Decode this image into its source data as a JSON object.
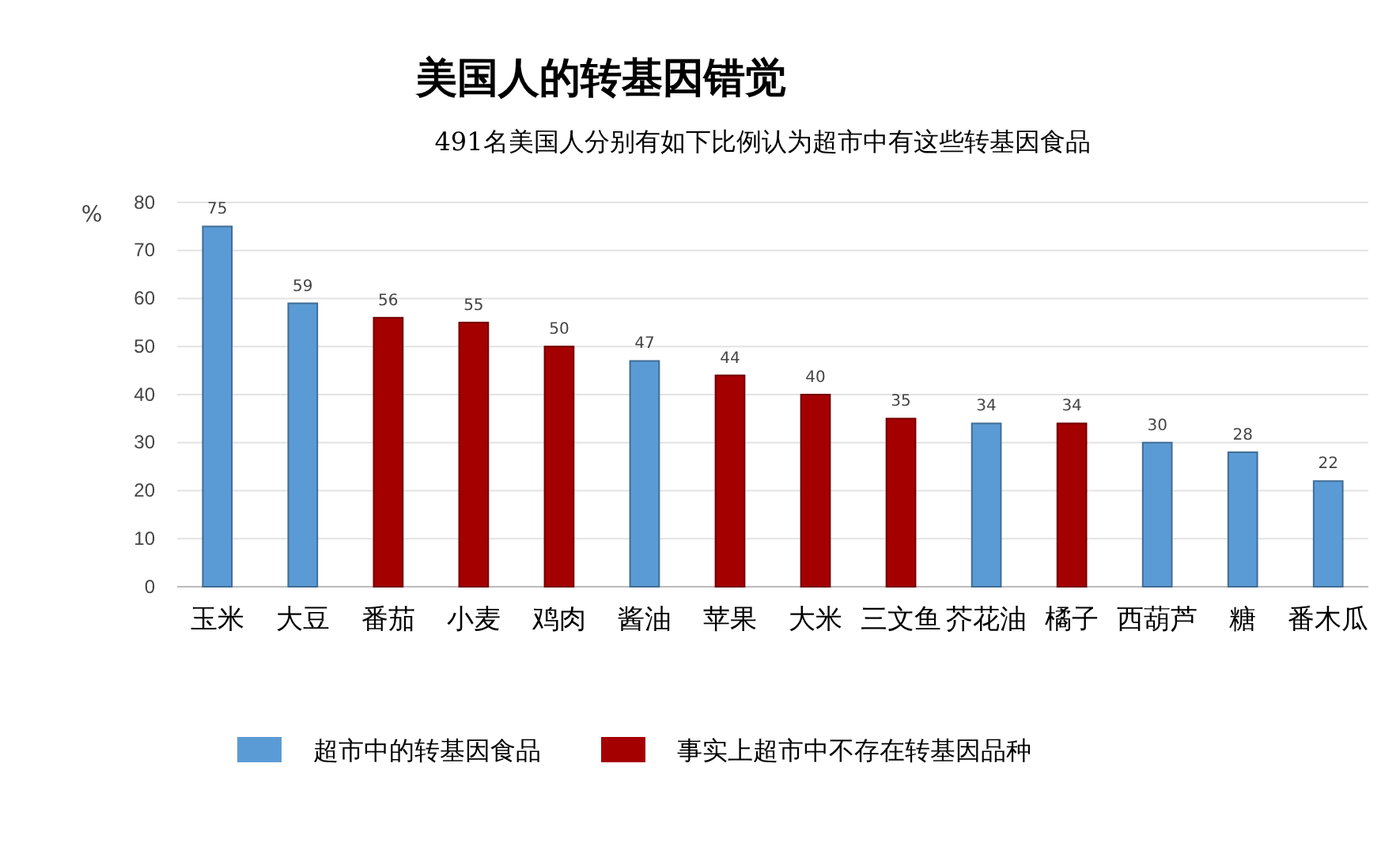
{
  "chart_data": {
    "type": "bar",
    "title": "美国人的转基因错觉",
    "subtitle": "491名美国人分别有如下比例认为超市中有这些转基因食品",
    "ylabel": "%",
    "categories": [
      "玉米",
      "大豆",
      "番茄",
      "小麦",
      "鸡肉",
      "酱油",
      "苹果",
      "大米",
      "三文鱼",
      "芥花油",
      "橘子",
      "西葫芦",
      "糖",
      "番木瓜"
    ],
    "series": [
      {
        "name": "超市中的转基因食品",
        "color": "#5b9bd5",
        "values": [
          75,
          59,
          null,
          null,
          null,
          47,
          null,
          null,
          null,
          34,
          null,
          30,
          28,
          22
        ]
      },
      {
        "name": "事实上超市中不存在转基因品种",
        "color": "#a50000",
        "values": [
          null,
          null,
          56,
          55,
          50,
          null,
          44,
          40,
          35,
          null,
          34,
          null,
          null,
          null
        ]
      }
    ],
    "ylim": [
      0,
      80
    ],
    "yticks": [
      0,
      10,
      20,
      30,
      40,
      50,
      60,
      70,
      80
    ],
    "grid": "y",
    "legend": "bottom",
    "data_labels": true
  }
}
